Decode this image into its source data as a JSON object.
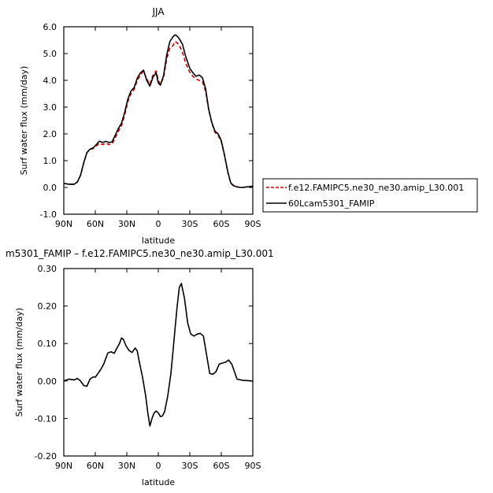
{
  "chart_data": [
    {
      "type": "line",
      "title": "JJA",
      "xlabel": "latitude",
      "ylabel": "Surf water flux (mm/day)",
      "xlim": [
        90,
        -90
      ],
      "ylim": [
        -1.0,
        6.0
      ],
      "x_ticks": [
        90,
        60,
        30,
        0,
        -30,
        -60,
        -90
      ],
      "x_tick_labels": [
        "90N",
        "60N",
        "30N",
        "0",
        "30S",
        "60S",
        "90S"
      ],
      "y_ticks": [
        -1.0,
        0.0,
        1.0,
        2.0,
        3.0,
        4.0,
        5.0,
        6.0
      ],
      "y_tick_labels": [
        "-1.0",
        "0.0",
        "1.0",
        "2.0",
        "3.0",
        "4.0",
        "5.0",
        "6.0"
      ],
      "grid": false,
      "legend_position": "outside-right",
      "x": [
        90,
        85,
        80,
        77,
        74,
        71,
        68,
        65,
        62,
        59,
        56,
        53,
        50,
        47,
        44,
        41,
        38,
        35,
        32,
        29,
        26,
        23,
        20,
        17,
        14,
        11,
        8,
        5,
        2,
        0,
        -2,
        -5,
        -8,
        -11,
        -14,
        -16,
        -18,
        -20,
        -23,
        -26,
        -30,
        -33,
        -36,
        -39,
        -42,
        -45,
        -48,
        -51,
        -54,
        -57,
        -60,
        -63,
        -66,
        -69,
        -72,
        -75,
        -78,
        -81,
        -84,
        -87,
        -90
      ],
      "series": [
        {
          "name": "f.e12.FAMIPC5.ne30_ne30.amip_L30.001",
          "color": "#cc0000",
          "dash": true,
          "values": [
            0.15,
            0.12,
            0.12,
            0.2,
            0.45,
            0.9,
            1.3,
            1.42,
            1.45,
            1.55,
            1.65,
            1.6,
            1.65,
            1.6,
            1.62,
            1.85,
            2.1,
            2.3,
            2.7,
            3.2,
            3.5,
            3.65,
            4.0,
            4.2,
            4.35,
            4.05,
            3.85,
            4.2,
            4.35,
            4.0,
            3.85,
            4.1,
            4.8,
            5.2,
            5.3,
            5.45,
            5.4,
            5.3,
            5.05,
            4.65,
            4.3,
            4.15,
            4.05,
            4.0,
            3.95,
            3.6,
            2.9,
            2.4,
            2.05,
            1.95,
            1.7,
            1.2,
            0.6,
            0.15,
            0.05,
            0.02,
            0.0,
            0.0,
            0.02,
            0.03,
            0.05
          ]
        },
        {
          "name": "60Lcam5301_FAMIP",
          "color": "#000000",
          "dash": false,
          "values": [
            0.15,
            0.12,
            0.12,
            0.21,
            0.46,
            0.92,
            1.3,
            1.43,
            1.48,
            1.6,
            1.73,
            1.68,
            1.72,
            1.68,
            1.7,
            1.95,
            2.2,
            2.4,
            2.8,
            3.3,
            3.6,
            3.73,
            4.08,
            4.28,
            4.38,
            4.0,
            3.78,
            4.12,
            4.28,
            3.9,
            3.82,
            4.18,
            4.95,
            5.45,
            5.63,
            5.7,
            5.65,
            5.55,
            5.35,
            4.9,
            4.45,
            4.28,
            4.15,
            4.2,
            4.1,
            3.7,
            2.92,
            2.42,
            2.1,
            2.0,
            1.75,
            1.22,
            0.62,
            0.17,
            0.06,
            0.02,
            0.0,
            0.0,
            0.02,
            0.03,
            0.05
          ]
        }
      ]
    },
    {
      "type": "line",
      "title": "m5301_FAMIP  –  f.e12.FAMIPC5.ne30_ne30.amip_L30.001",
      "xlabel": "latitude",
      "ylabel": "Surf water flux (mm/day)",
      "xlim": [
        90,
        -90
      ],
      "ylim": [
        -0.2,
        0.3
      ],
      "x_ticks": [
        90,
        60,
        30,
        0,
        -30,
        -60,
        -90
      ],
      "x_tick_labels": [
        "90N",
        "60N",
        "30N",
        "0",
        "30S",
        "60S",
        "90S"
      ],
      "y_ticks": [
        -0.2,
        -0.1,
        0.0,
        0.1,
        0.2,
        0.3
      ],
      "y_tick_labels": [
        "-0.20",
        "-0.10",
        "0.00",
        "0.10",
        "0.20",
        "0.30"
      ],
      "grid": false,
      "x": [
        90,
        85,
        80,
        77,
        74,
        71,
        68,
        65,
        62,
        60,
        58,
        55,
        52,
        50,
        48,
        45,
        42,
        39,
        37,
        35,
        33,
        31,
        28,
        25,
        22,
        20,
        18,
        15,
        12,
        10,
        8,
        6,
        4,
        2,
        0,
        -2,
        -4,
        -6,
        -9,
        -12,
        -14,
        -16,
        -18,
        -20,
        -22,
        -25,
        -28,
        -31,
        -34,
        -37,
        -40,
        -43,
        -46,
        -49,
        -52,
        -55,
        -58,
        -61,
        -64,
        -67,
        -70,
        -75,
        -80,
        -85,
        -90
      ],
      "series": [
        {
          "name": "",
          "color": "#000000",
          "dash": false,
          "values": [
            0.0,
            0.005,
            0.003,
            0.007,
            0.0,
            -0.012,
            -0.014,
            0.005,
            0.011,
            0.01,
            0.018,
            0.03,
            0.045,
            0.06,
            0.075,
            0.078,
            0.074,
            0.09,
            0.1,
            0.115,
            0.11,
            0.095,
            0.082,
            0.076,
            0.088,
            0.08,
            0.05,
            0.01,
            -0.04,
            -0.085,
            -0.12,
            -0.1,
            -0.085,
            -0.08,
            -0.085,
            -0.095,
            -0.093,
            -0.082,
            -0.04,
            0.02,
            0.08,
            0.14,
            0.2,
            0.25,
            0.26,
            0.22,
            0.155,
            0.125,
            0.12,
            0.125,
            0.127,
            0.12,
            0.07,
            0.02,
            0.018,
            0.025,
            0.045,
            0.048,
            0.05,
            0.056,
            0.045,
            0.005,
            0.002,
            0.001,
            0.0
          ]
        }
      ]
    }
  ]
}
